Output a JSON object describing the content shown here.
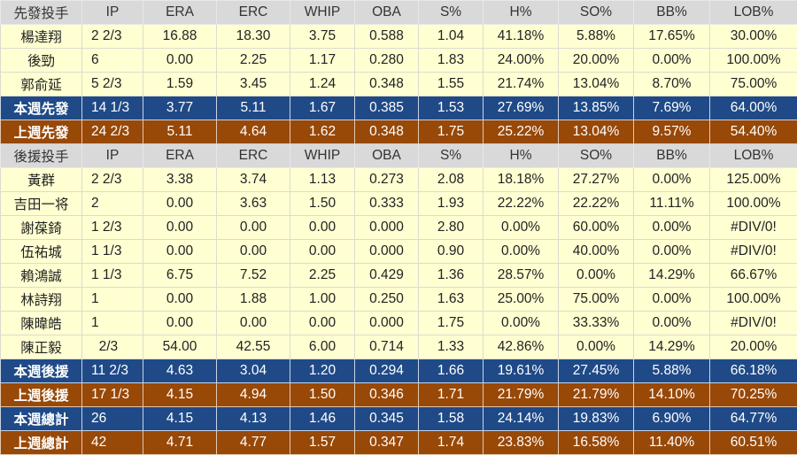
{
  "colors": {
    "header_bg": "#d9d9d9",
    "row_bg": "#ffffd2",
    "this_week": "#1f4a87",
    "last_week": "#984807"
  },
  "columns": [
    "IP",
    "ERA",
    "ERC",
    "WHIP",
    "OBA",
    "S%",
    "H%",
    "SO%",
    "BB%",
    "LOB%"
  ],
  "rows": [
    {
      "type": "header",
      "cells": [
        "先發投手",
        "IP",
        "ERA",
        "ERC",
        "WHIP",
        "OBA",
        "S%",
        "H%",
        "SO%",
        "BB%",
        "LOB%"
      ]
    },
    {
      "type": "data",
      "cells": [
        "楊達翔",
        "2 2/3",
        "16.88",
        "18.30",
        "3.75",
        "0.588",
        "1.04",
        "41.18%",
        "5.88%",
        "17.65%",
        "30.00%"
      ]
    },
    {
      "type": "data",
      "cells": [
        "後勁",
        "6",
        "0.00",
        "2.25",
        "1.17",
        "0.280",
        "1.83",
        "24.00%",
        "20.00%",
        "0.00%",
        "100.00%"
      ]
    },
    {
      "type": "data",
      "cells": [
        "郭俞延",
        "5 2/3",
        "1.59",
        "3.45",
        "1.24",
        "0.348",
        "1.55",
        "21.74%",
        "13.04%",
        "8.70%",
        "75.00%"
      ]
    },
    {
      "type": "thisweek",
      "cells": [
        "本週先發",
        "14 1/3",
        "3.77",
        "5.11",
        "1.67",
        "0.385",
        "1.53",
        "27.69%",
        "13.85%",
        "7.69%",
        "64.00%"
      ]
    },
    {
      "type": "lastweek",
      "cells": [
        "上週先發",
        "24 2/3",
        "5.11",
        "4.64",
        "1.62",
        "0.348",
        "1.75",
        "25.22%",
        "13.04%",
        "9.57%",
        "54.40%"
      ]
    },
    {
      "type": "header",
      "cells": [
        "後援投手",
        "IP",
        "ERA",
        "ERC",
        "WHIP",
        "OBA",
        "S%",
        "H%",
        "SO%",
        "BB%",
        "LOB%"
      ]
    },
    {
      "type": "data",
      "cells": [
        "黃群",
        "2 2/3",
        "3.38",
        "3.74",
        "1.13",
        "0.273",
        "2.08",
        "18.18%",
        "27.27%",
        "0.00%",
        "125.00%"
      ]
    },
    {
      "type": "data",
      "cells": [
        "吉田一将",
        "2",
        "0.00",
        "3.63",
        "1.50",
        "0.333",
        "1.93",
        "22.22%",
        "22.22%",
        "11.11%",
        "100.00%"
      ]
    },
    {
      "type": "data",
      "cells": [
        "謝葆錡",
        "1 2/3",
        "0.00",
        "0.00",
        "0.00",
        "0.000",
        "2.80",
        "0.00%",
        "60.00%",
        "0.00%",
        "#DIV/0!"
      ]
    },
    {
      "type": "data",
      "cells": [
        "伍祐城",
        "1 1/3",
        "0.00",
        "0.00",
        "0.00",
        "0.000",
        "0.90",
        "0.00%",
        "40.00%",
        "0.00%",
        "#DIV/0!"
      ]
    },
    {
      "type": "data",
      "cells": [
        "賴鴻誠",
        "1 1/3",
        "6.75",
        "7.52",
        "2.25",
        "0.429",
        "1.36",
        "28.57%",
        "0.00%",
        "14.29%",
        "66.67%"
      ]
    },
    {
      "type": "data",
      "cells": [
        "林詩翔",
        "1",
        "0.00",
        "1.88",
        "1.00",
        "0.250",
        "1.63",
        "25.00%",
        "75.00%",
        "0.00%",
        "100.00%"
      ]
    },
    {
      "type": "data",
      "cells": [
        "陳暐皓",
        "1",
        "0.00",
        "0.00",
        "0.00",
        "0.000",
        "1.75",
        "0.00%",
        "33.33%",
        "0.00%",
        "#DIV/0!"
      ]
    },
    {
      "type": "data",
      "cells": [
        "陳正毅",
        "  2/3",
        "54.00",
        "42.55",
        "6.00",
        "0.714",
        "1.33",
        "42.86%",
        "0.00%",
        "14.29%",
        "20.00%"
      ]
    },
    {
      "type": "thisweek",
      "cells": [
        "本週後援",
        "11 2/3",
        "4.63",
        "3.04",
        "1.20",
        "0.294",
        "1.66",
        "19.61%",
        "27.45%",
        "5.88%",
        "66.18%"
      ]
    },
    {
      "type": "lastweek",
      "cells": [
        "上週後援",
        "17 1/3",
        "4.15",
        "4.94",
        "1.50",
        "0.346",
        "1.71",
        "21.79%",
        "21.79%",
        "14.10%",
        "70.25%"
      ]
    },
    {
      "type": "thisweek",
      "cells": [
        "本週總計",
        "26",
        "4.15",
        "4.13",
        "1.46",
        "0.345",
        "1.58",
        "24.14%",
        "19.83%",
        "6.90%",
        "64.77%"
      ]
    },
    {
      "type": "lastweek",
      "cells": [
        "上週總計",
        "42",
        "4.71",
        "4.77",
        "1.57",
        "0.347",
        "1.74",
        "23.83%",
        "16.58%",
        "11.40%",
        "60.51%"
      ]
    }
  ]
}
